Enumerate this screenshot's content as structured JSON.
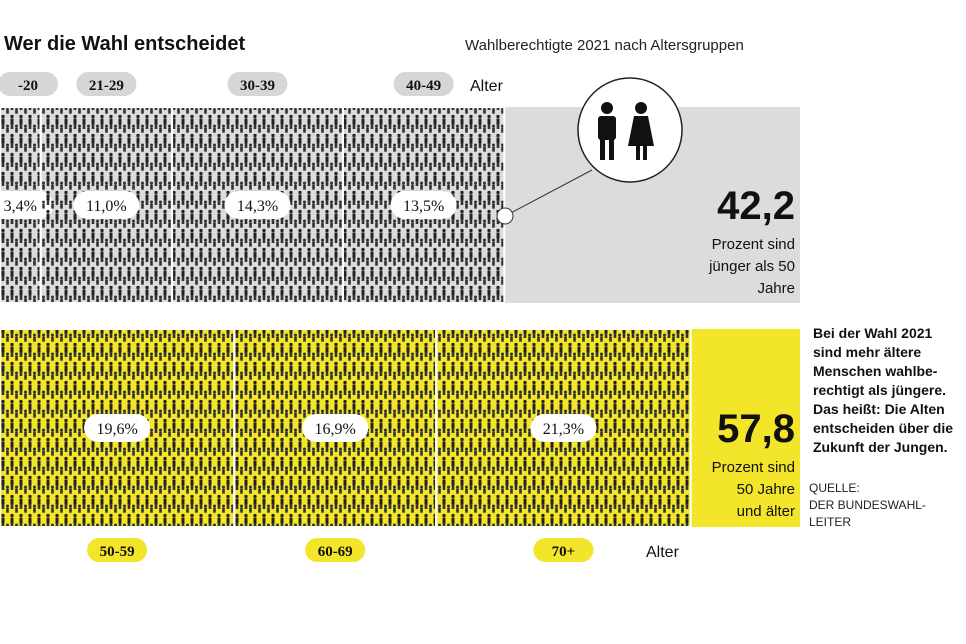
{
  "chart_data": {
    "type": "proportional-blocks",
    "title": "Wer die Wahl entscheidet",
    "subtitle": "Wahlberechtigte 2021 nach Altersgruppen",
    "axis_label": "Alter",
    "groups": [
      {
        "categories": [
          "-20",
          "21-29",
          "30-39",
          "40-49"
        ],
        "values": [
          3.4,
          11.0,
          14.3,
          13.5
        ],
        "value_labels": [
          "3,4%",
          "11,0%",
          "14,3%",
          "13,5%"
        ],
        "total": 42.2,
        "total_label": "42,2",
        "caption": [
          "Prozent sind",
          "jünger als 50",
          "Jahre"
        ],
        "color": "#dcdcdc",
        "pill_color": "#d6d6d6"
      },
      {
        "categories": [
          "50-59",
          "60-69",
          "70+"
        ],
        "values": [
          19.6,
          16.9,
          21.3
        ],
        "value_labels": [
          "19,6%",
          "16,9%",
          "21,3%"
        ],
        "total": 57.8,
        "total_label": "57,8",
        "caption": [
          "Prozent sind",
          "50 Jahre",
          "und älter"
        ],
        "color": "#f3e52a",
        "pill_color": "#f3e52a"
      }
    ],
    "note": [
      "Bei der Wahl 2021",
      "sind mehr ältere",
      "Menschen wahlbe-",
      "rechtigt als jüngere.",
      "Das heißt: Die Alten",
      "entscheiden über die",
      "Zukunft der Jungen."
    ],
    "source": [
      "QUELLE:",
      "DER BUNDESWAHL-",
      "LEITER"
    ]
  }
}
